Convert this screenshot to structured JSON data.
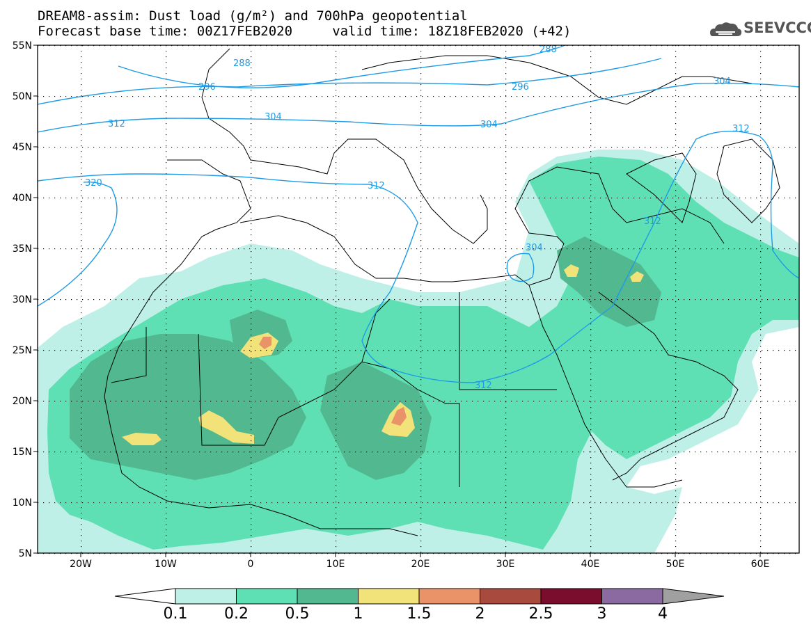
{
  "title_line1": "DREAM8-assim: Dust load (g/m²) and 700hPa geopotential",
  "title_line2": "Forecast base time: 00Z17FEB2020     valid time: 18Z18FEB2020 (+42)",
  "logo_text": "SEEVCCC",
  "lat_labels": [
    "55N",
    "50N",
    "45N",
    "40N",
    "35N",
    "30N",
    "25N",
    "20N",
    "15N",
    "10N",
    "5N"
  ],
  "lon_labels": [
    "20W",
    "10W",
    "0",
    "10E",
    "20E",
    "30E",
    "40E",
    "50E",
    "60E"
  ],
  "contour_labels": [
    "288",
    "288",
    "296",
    "296",
    "304",
    "304",
    "304",
    "304",
    "312",
    "312",
    "312",
    "312",
    "312",
    "320"
  ],
  "colorbar": {
    "ticks": [
      "0.1",
      "0.2",
      "0.5",
      "1",
      "1.5",
      "2",
      "2.5",
      "3",
      "4"
    ],
    "colors": [
      "#bff0e8",
      "#5ee0b4",
      "#52b88f",
      "#f2e27a",
      "#ea9268",
      "#a84a3e",
      "#7a0c2e",
      "#8a6aa0",
      "#a0a0a0"
    ]
  },
  "icons": [
    "cloud-logo-icon"
  ]
}
